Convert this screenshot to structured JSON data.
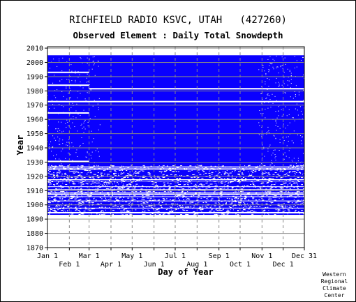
{
  "header": {
    "title": "RICHFIELD RADIO KSVC, UTAH   (427260)",
    "subtitle": "Observed Element : Daily Total Snowdepth"
  },
  "credit": [
    "Western",
    "Regional",
    "Climate",
    "Center"
  ],
  "colors": {
    "data": "#0a00ff",
    "gap": "#ffffff",
    "grid": "#888888",
    "axis": "#000000"
  },
  "chart_data": {
    "type": "heatmap",
    "title": "RICHFIELD RADIO KSVC, UTAH   (427260)",
    "subtitle": "Observed Element : Daily Total Snowdepth",
    "xlabel": "Day of Year",
    "ylabel": "Year",
    "xlim": [
      1,
      365
    ],
    "ylim": [
      1870,
      2011
    ],
    "x_ticks_upper": [
      {
        "label": "Jan 1",
        "day": 1
      },
      {
        "label": "Mar 1",
        "day": 60
      },
      {
        "label": "May 1",
        "day": 121
      },
      {
        "label": "Jul 1",
        "day": 182
      },
      {
        "label": "Sep 1",
        "day": 244
      },
      {
        "label": "Nov 1",
        "day": 305
      },
      {
        "label": "Dec 31",
        "day": 365
      }
    ],
    "x_ticks_lower": [
      {
        "label": "Feb 1",
        "day": 32
      },
      {
        "label": "Apr 1",
        "day": 91
      },
      {
        "label": "Jun 1",
        "day": 152
      },
      {
        "label": "Aug 1",
        "day": 213
      },
      {
        "label": "Oct 1",
        "day": 274
      },
      {
        "label": "Dec 1",
        "day": 335
      }
    ],
    "y_ticks": [
      1870,
      1880,
      1890,
      1900,
      1910,
      1920,
      1930,
      1940,
      1950,
      1960,
      1970,
      1980,
      1990,
      2000,
      2010
    ],
    "grid": true,
    "data_years": [
      1893,
      2005
    ],
    "dense_coverage_years": [
      1928,
      2005
    ],
    "blocks": [
      {
        "year_from": 1893,
        "year_to": 2005,
        "day_from": 1,
        "day_to": 365,
        "value": "observed"
      }
    ],
    "gaps": [
      {
        "year_from": 1992.5,
        "year_to": 1993.5,
        "day_from": 1,
        "day_to": 60
      },
      {
        "year_from": 1983.5,
        "year_to": 1984.5,
        "day_from": 1,
        "day_to": 60
      },
      {
        "year_from": 1981,
        "year_to": 1982,
        "day_from": 60,
        "day_to": 365
      },
      {
        "year_from": 1972,
        "year_to": 1973,
        "day_from": 1,
        "day_to": 365
      },
      {
        "year_from": 1964,
        "year_to": 1965,
        "day_from": 1,
        "day_to": 60
      },
      {
        "year_from": 1930,
        "year_to": 1931,
        "day_from": 1,
        "day_to": 60
      },
      {
        "year_from": 1907,
        "year_to": 1908,
        "day_from": 1,
        "day_to": 365
      },
      {
        "year_from": 1894,
        "year_to": 1895,
        "day_from": 1,
        "day_to": 365
      }
    ]
  }
}
